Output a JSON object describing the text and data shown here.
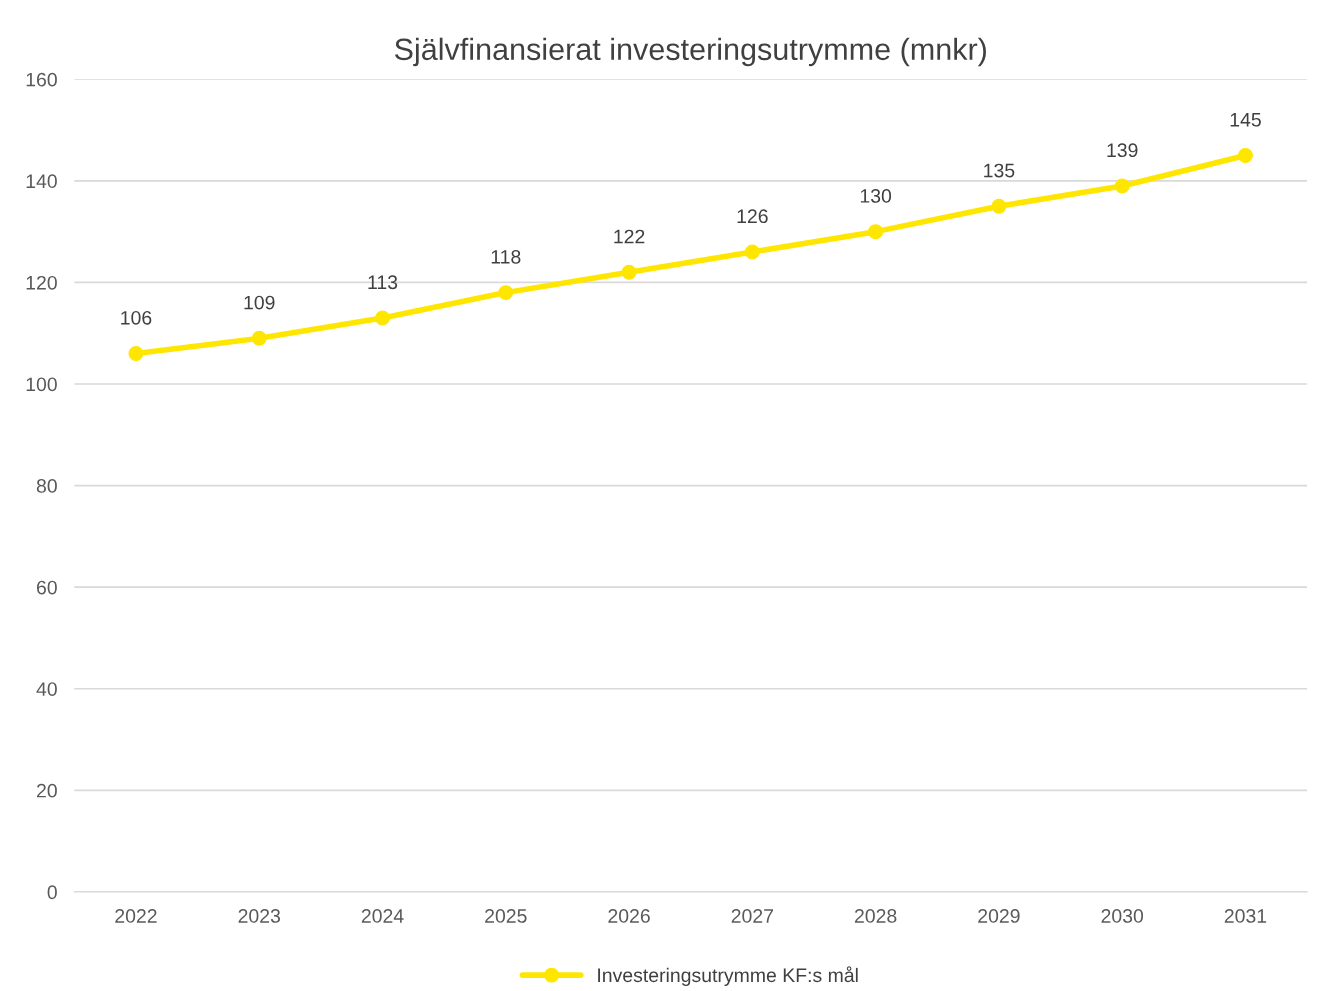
{
  "chart_data": {
    "type": "line",
    "title": "Självfinansierat investeringsutrymme (mnkr)",
    "categories": [
      "2022",
      "2023",
      "2024",
      "2025",
      "2026",
      "2027",
      "2028",
      "2029",
      "2030",
      "2031"
    ],
    "series": [
      {
        "name": "Investeringsutrymme KF:s mål",
        "color": "#ffe600",
        "values": [
          106,
          109,
          113,
          118,
          122,
          126,
          130,
          135,
          139,
          145
        ]
      }
    ],
    "ylim": [
      0,
      160
    ],
    "yticks": [
      0,
      20,
      40,
      60,
      80,
      100,
      120,
      140,
      160
    ],
    "grid": "y",
    "legend": "bottom",
    "marker": "circle",
    "line_style": "solid",
    "data_labels": true
  }
}
